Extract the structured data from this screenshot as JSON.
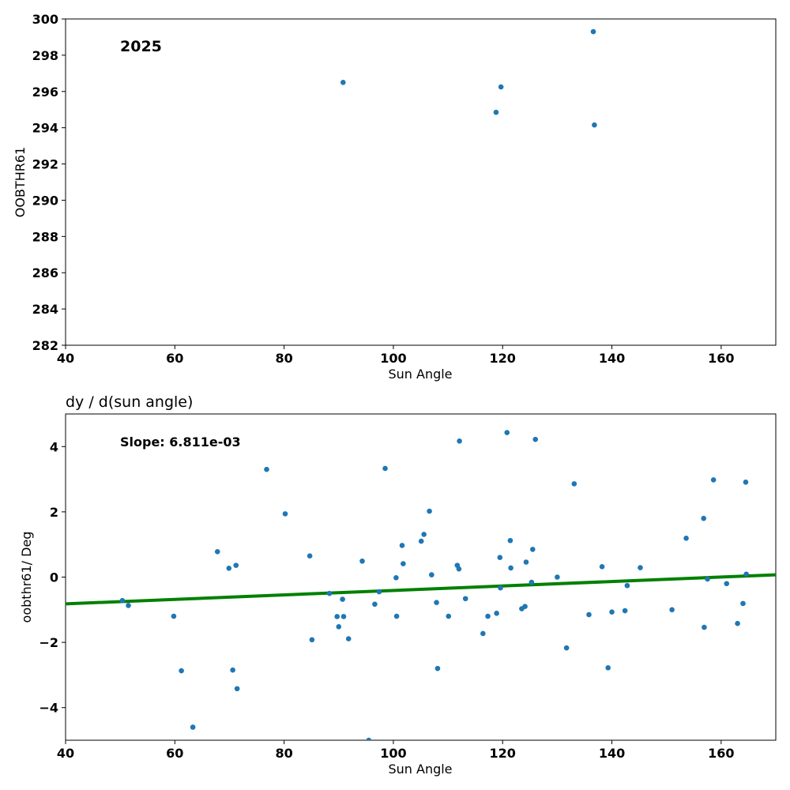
{
  "chart_data": [
    {
      "type": "scatter",
      "title": "",
      "annotation": "2025",
      "xlabel": "Sun Angle",
      "ylabel": "OOBTHR61",
      "xlim": [
        40,
        170
      ],
      "ylim": [
        282,
        300
      ],
      "xticks": [
        "40",
        "60",
        "80",
        "100",
        "120",
        "140",
        "160"
      ],
      "yticks": [
        "282",
        "284",
        "286",
        "288",
        "290",
        "292",
        "294",
        "296",
        "298",
        "300"
      ],
      "grid": false,
      "point_color": "#1f77b4",
      "series": [
        {
          "x": [
            90.8,
            118.8,
            119.7,
            136.6,
            136.8
          ],
          "y": [
            296.5,
            294.85,
            296.25,
            299.3,
            294.15
          ]
        }
      ]
    },
    {
      "type": "scatter",
      "title": "dy / d(sun angle)",
      "annotation": "Slope: 6.811e-03",
      "xlabel": "Sun Angle",
      "ylabel": "oobthr61/ Deg",
      "xlim": [
        40,
        170
      ],
      "ylim": [
        -5,
        5
      ],
      "xticks": [
        "40",
        "60",
        "80",
        "100",
        "120",
        "140",
        "160"
      ],
      "yticks": [
        "−4",
        "−2",
        "0",
        "2",
        "4"
      ],
      "ytick_values": [
        -4,
        -2,
        0,
        2,
        4
      ],
      "grid": false,
      "point_color": "#1f77b4",
      "fit_line": {
        "color": "#008000",
        "x": [
          40,
          170
        ],
        "y": [
          -0.82,
          0.07
        ]
      },
      "series": [
        {
          "x": [
            50.4,
            51.5,
            59.8,
            61.2,
            63.3,
            67.8,
            69.9,
            70.6,
            71.2,
            71.4,
            76.8,
            80.2,
            84.7,
            85.1,
            88.3,
            89.7,
            90.0,
            90.7,
            90.9,
            91.8,
            94.3,
            95.5,
            96.6,
            97.4,
            98.5,
            100.5,
            100.6,
            101.6,
            101.8,
            105.1,
            105.6,
            106.6,
            107.0,
            107.9,
            108.1,
            110.1,
            111.7,
            112.0,
            112.1,
            113.2,
            116.4,
            117.3,
            118.9,
            119.5,
            119.6,
            120.8,
            121.4,
            121.5,
            123.5,
            124.1,
            124.3,
            125.3,
            125.5,
            126.0,
            130.0,
            131.7,
            133.1,
            135.8,
            138.2,
            139.3,
            140.0,
            142.4,
            142.8,
            145.2,
            151.0,
            153.6,
            156.8,
            156.9,
            157.5,
            158.6,
            161.0,
            163.0,
            164.0,
            164.5,
            164.6
          ],
          "y": [
            -0.72,
            -0.87,
            -1.2,
            -2.87,
            -4.6,
            0.78,
            0.27,
            -2.85,
            0.36,
            -3.42,
            3.3,
            1.94,
            0.65,
            -1.92,
            -0.5,
            -1.21,
            -1.52,
            -0.68,
            -1.21,
            -1.89,
            0.49,
            -5.0,
            -0.83,
            -0.45,
            3.33,
            -0.02,
            -1.2,
            0.97,
            0.41,
            1.1,
            1.31,
            2.02,
            0.07,
            -0.78,
            -2.8,
            -1.2,
            0.36,
            0.25,
            4.17,
            -0.66,
            -1.73,
            -1.2,
            -1.11,
            0.6,
            -0.33,
            4.43,
            1.12,
            0.28,
            -0.97,
            -0.9,
            0.46,
            -0.16,
            0.85,
            4.22,
            0.0,
            -2.17,
            2.86,
            -1.15,
            0.32,
            -2.78,
            -1.07,
            -1.03,
            -0.26,
            0.29,
            -1.0,
            1.19,
            1.8,
            -1.54,
            -0.06,
            2.98,
            -0.2,
            -1.42,
            -0.81,
            2.91,
            0.09
          ]
        }
      ]
    }
  ]
}
